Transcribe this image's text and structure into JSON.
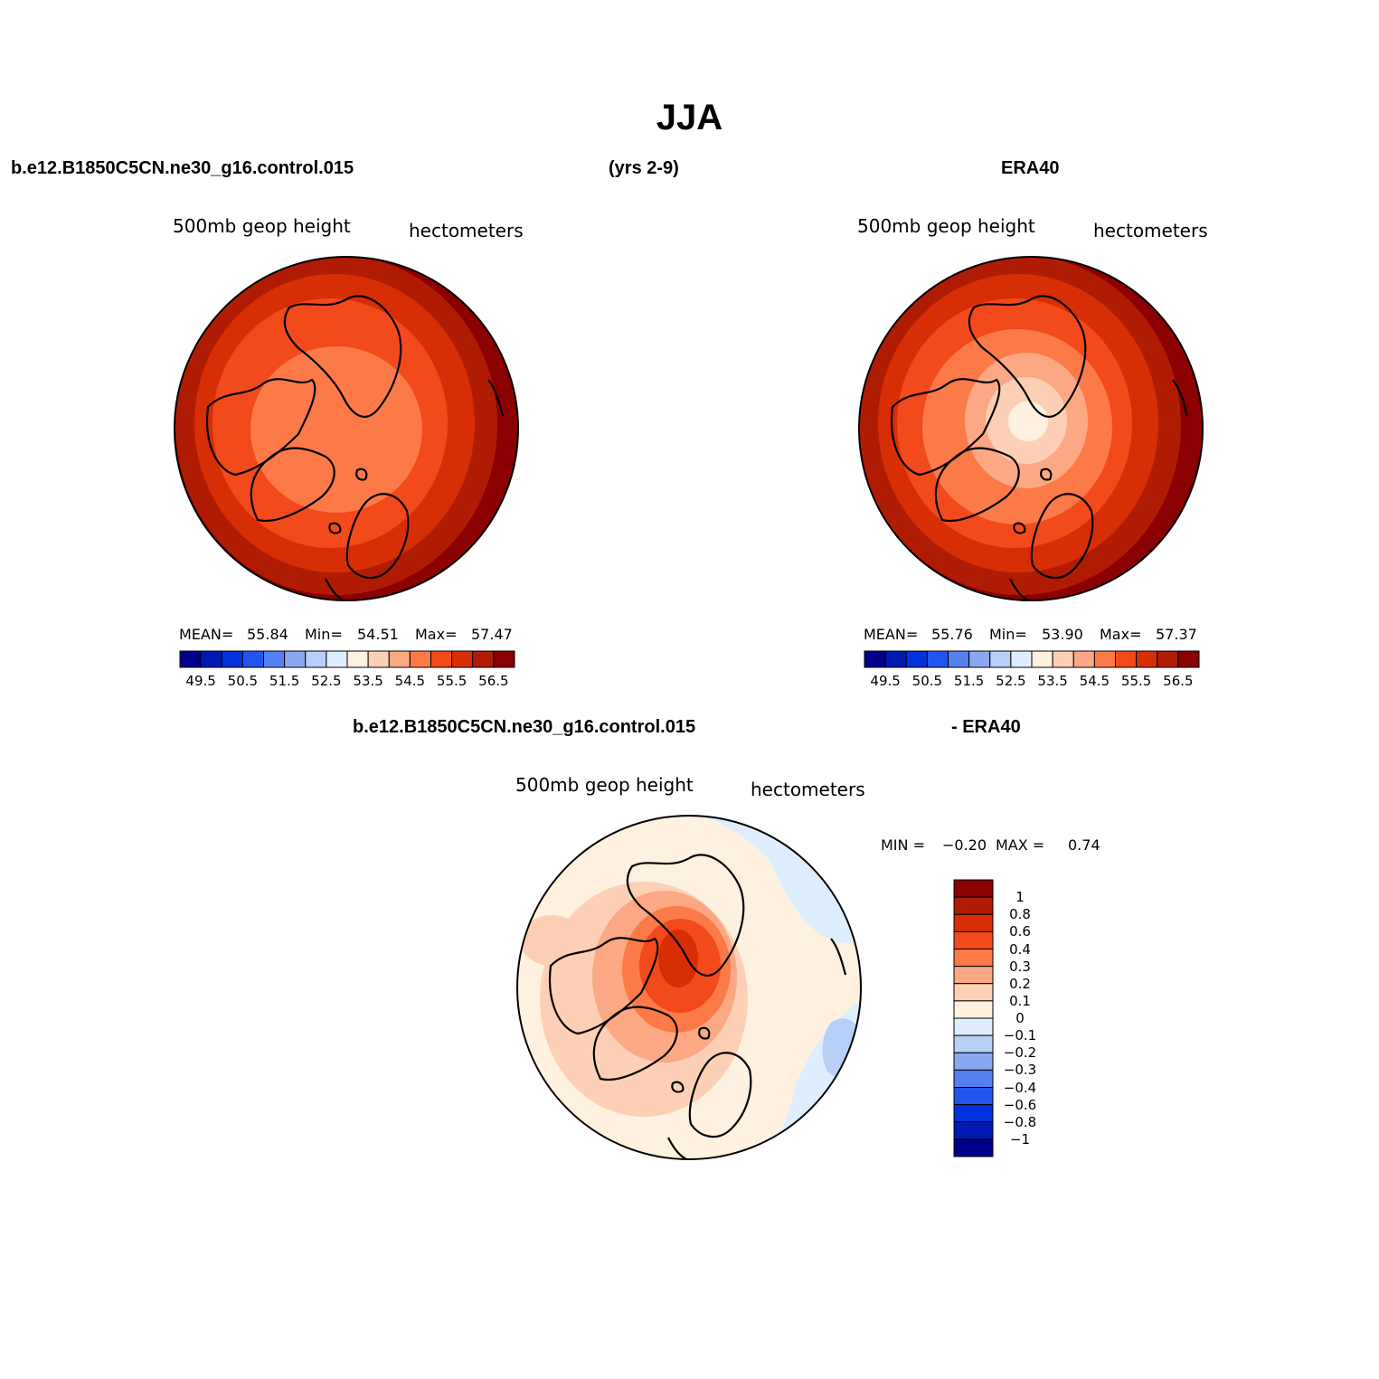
{
  "title": "JJA",
  "header": {
    "left": "b.e12.B1850C5CN.ne30_g16.control.015",
    "center": "(yrs 2-9)",
    "right": "ERA40"
  },
  "panels": [
    {
      "label_left": "500mb geop height",
      "label_right": "hectometers",
      "stats": {
        "mean_label": "MEAN=",
        "mean": "55.84",
        "min_label": "Min=",
        "min": "54.51",
        "max_label": "Max=",
        "max": "57.47"
      }
    },
    {
      "label_left": "500mb geop height",
      "label_right": "hectometers",
      "stats": {
        "mean_label": "MEAN=",
        "mean": "55.76",
        "min_label": "Min=",
        "min": "53.90",
        "max_label": "Max=",
        "max": "57.37"
      }
    }
  ],
  "colorbar_levels": {
    "labels": [
      "49.5",
      "50.5",
      "51.5",
      "52.5",
      "53.5",
      "54.5",
      "55.5",
      "56.5"
    ],
    "colors": [
      "#00008b",
      "#0019b3",
      "#0033dd",
      "#2255ee",
      "#5580f0",
      "#8aa8f2",
      "#b8cff7",
      "#dfeeff",
      "#fff1e0",
      "#fdd0b6",
      "#fca884",
      "#fb7a48",
      "#f24a1a",
      "#d82e05",
      "#b01c03",
      "#8b0000"
    ]
  },
  "difference": {
    "header_left": "b.e12.B1850C5CN.ne30_g16.control.015",
    "header_right": "- ERA40",
    "label_left": "500mb geop height",
    "label_right": "hectometers",
    "min_label": "MIN =",
    "min": "−0.20",
    "max_label": "MAX =",
    "max": "0.74",
    "colorbar": {
      "labels": [
        "1",
        "0.8",
        "0.6",
        "0.4",
        "0.3",
        "0.2",
        "0.1",
        "0",
        "−0.1",
        "−0.2",
        "−0.3",
        "−0.4",
        "−0.6",
        "−0.8",
        "−1"
      ],
      "colors": [
        "#8b0000",
        "#b01c03",
        "#d82e05",
        "#f24a1a",
        "#fb7a48",
        "#fca884",
        "#fdd0b6",
        "#fff1e0",
        "#dfeeff",
        "#b8cff7",
        "#8aa8f2",
        "#5580f0",
        "#2255ee",
        "#0033dd",
        "#0019b3",
        "#00008b"
      ]
    }
  }
}
